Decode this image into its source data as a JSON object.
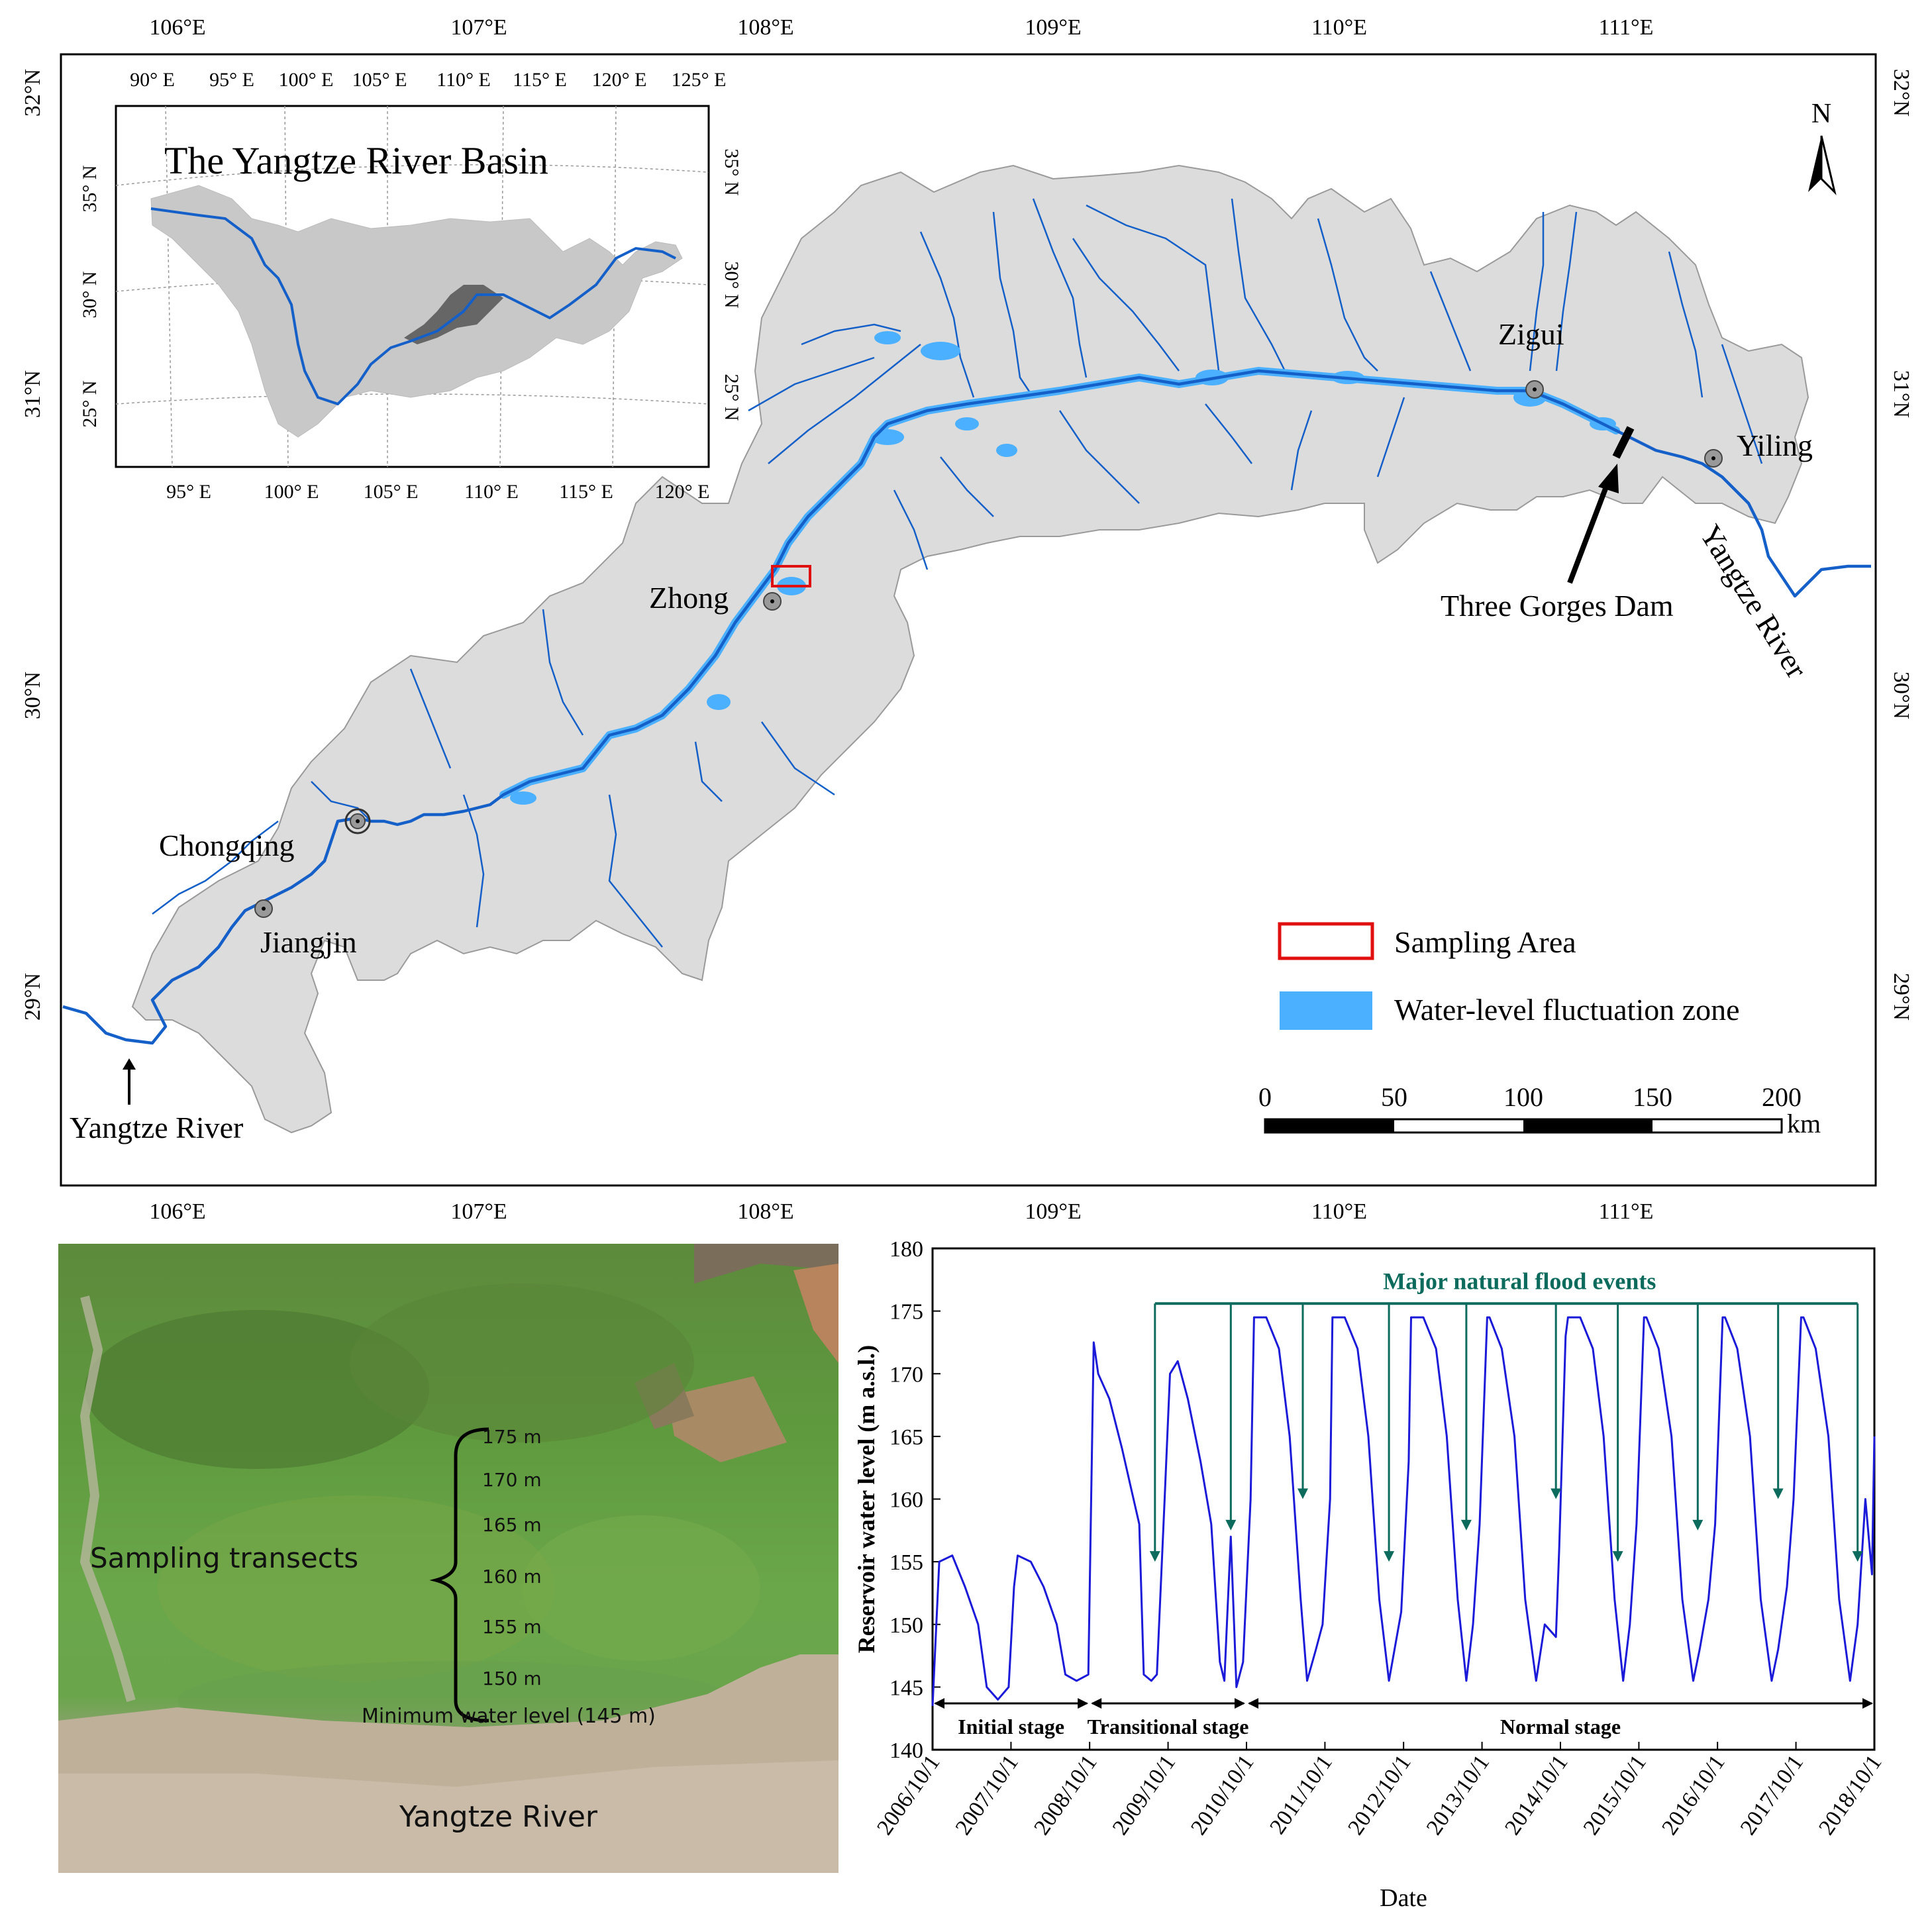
{
  "map": {
    "lon_labels": [
      "106°E",
      "107°E",
      "108°E",
      "109°E",
      "110°E",
      "111°E"
    ],
    "lat_labels": [
      "32°N",
      "31°N",
      "30°N",
      "29°N"
    ],
    "north_label": "N",
    "places": [
      {
        "name": "Zigui"
      },
      {
        "name": "Yiling"
      },
      {
        "name": "Zhong"
      },
      {
        "name": "Chongqing"
      },
      {
        "name": "Jiangjin"
      }
    ],
    "three_gorges_label": "Three Gorges Dam",
    "river_label_right": "Yangtze River",
    "river_label_left": "Yangtze River",
    "legend": {
      "sampling": "Sampling Area",
      "wlfz": "Water-level fluctuation zone"
    },
    "scalebar": {
      "ticks": [
        "0",
        "50",
        "100",
        "150",
        "200"
      ],
      "unit": "km"
    },
    "colors": {
      "basin": "#dcdcdc",
      "river": "#1460c8",
      "wlfz": "#4ab0ff",
      "sampling": "#e01010"
    }
  },
  "inset": {
    "title": "The Yangtze River Basin",
    "lon_labels": [
      "90° E",
      "95° E",
      "100° E",
      "105° E",
      "110° E",
      "115° E",
      "120° E",
      "125° E"
    ],
    "bottom_lon_labels": [
      "95° E",
      "100° E",
      "105° E",
      "110° E",
      "115° E",
      "120° E"
    ],
    "lat_labels": [
      "35° N",
      "30° N",
      "25° N"
    ]
  },
  "photo": {
    "transects_label": "Sampling transects",
    "elevations": [
      "175 m",
      "170 m",
      "165 m",
      "160 m",
      "155 m",
      "150 m"
    ],
    "min_level": "Minimum water level (145 m)",
    "river": "Yangtze River"
  },
  "chart_data": {
    "type": "line",
    "title": "",
    "xlabel": "Date",
    "ylabel": "Reservoir water level (m a.s.l.)",
    "ylim": [
      140,
      180
    ],
    "yticks": [
      140,
      145,
      150,
      155,
      160,
      165,
      170,
      175,
      180
    ],
    "xticks": [
      "2006/10/1",
      "2007/10/1",
      "2008/10/1",
      "2009/10/1",
      "2010/10/1",
      "2011/10/1",
      "2012/10/1",
      "2013/10/1",
      "2014/10/1",
      "2015/10/1",
      "2016/10/1",
      "2017/10/1",
      "2018/10/1"
    ],
    "series": [
      {
        "color": "#1a1ad8",
        "x": [
          "2006/10/1",
          "2006/11/1",
          "2007/1/1",
          "2007/3/1",
          "2007/5/1",
          "2007/6/10",
          "2007/8/1",
          "2007/9/20",
          "2007/10/15",
          "2007/11/1",
          "2008/1/1",
          "2008/3/1",
          "2008/5/1",
          "2008/6/10",
          "2008/8/1",
          "2008/9/25",
          "2008/10/20",
          "2008/11/10",
          "2009/1/1",
          "2009/3/1",
          "2009/4/10",
          "2009/5/20",
          "2009/6/10",
          "2009/7/15",
          "2009/8/10",
          "2009/9/15",
          "2009/10/10",
          "2009/11/15",
          "2010/1/1",
          "2010/3/1",
          "2010/4/20",
          "2010/5/30",
          "2010/6/20",
          "2010/7/20",
          "2010/8/15",
          "2010/9/15",
          "2010/10/20",
          "2010/11/5",
          "2011/1/1",
          "2011/3/1",
          "2011/4/20",
          "2011/6/10",
          "2011/7/10",
          "2011/8/20",
          "2011/9/20",
          "2011/10/25",
          "2011/11/5",
          "2012/1/1",
          "2012/3/1",
          "2012/4/20",
          "2012/6/10",
          "2012/7/25",
          "2012/8/20",
          "2012/9/20",
          "2012/10/25",
          "2012/11/5",
          "2013/1/1",
          "2013/3/1",
          "2013/4/20",
          "2013/6/10",
          "2013/7/20",
          "2013/8/20",
          "2013/9/20",
          "2013/10/25",
          "2013/11/5",
          "2014/1/1",
          "2014/3/1",
          "2014/4/20",
          "2014/6/10",
          "2014/7/20",
          "2014/9/10",
          "2014/9/25",
          "2014/10/25",
          "2014/11/5",
          "2015/1/1",
          "2015/3/1",
          "2015/4/20",
          "2015/6/10",
          "2015/7/20",
          "2015/8/20",
          "2015/9/20",
          "2015/10/25",
          "2015/11/5",
          "2016/1/1",
          "2016/3/1",
          "2016/4/20",
          "2016/6/10",
          "2016/7/10",
          "2016/8/20",
          "2016/9/20",
          "2016/10/25",
          "2016/11/5",
          "2017/1/1",
          "2017/3/1",
          "2017/4/20",
          "2017/6/10",
          "2017/7/10",
          "2017/8/20",
          "2017/9/20",
          "2017/10/25",
          "2017/11/5",
          "2018/1/1",
          "2018/3/1",
          "2018/4/20",
          "2018/6/10",
          "2018/7/15",
          "2018/8/20",
          "2018/9/20",
          "2018/10/1"
        ],
        "values": [
          143.5,
          155,
          155.5,
          153,
          150,
          145,
          144,
          145,
          153,
          155.5,
          155,
          153,
          150,
          146,
          145.5,
          146,
          172.5,
          170,
          168,
          164,
          161,
          158,
          146,
          145.5,
          146,
          160,
          170,
          171,
          168,
          163,
          158,
          147,
          145.5,
          157,
          145,
          147,
          160,
          174.5,
          174.5,
          172,
          165,
          152,
          145.5,
          148,
          150,
          160,
          174.5,
          174.5,
          172,
          165,
          152,
          145.5,
          148,
          151,
          163,
          174.5,
          174.5,
          172,
          165,
          152,
          145.5,
          150,
          158,
          174.5,
          174.5,
          172,
          165,
          152,
          145.5,
          150,
          149,
          156,
          173,
          174.5,
          174.5,
          172,
          165,
          152,
          145.5,
          150,
          158,
          174.5,
          174.5,
          172,
          165,
          152,
          145.5,
          148,
          152,
          158,
          174.5,
          174.5,
          172,
          165,
          152,
          145.5,
          148,
          153,
          160,
          174.5,
          174.5,
          172,
          165,
          152,
          145.5,
          150,
          160,
          154,
          165
        ]
      }
    ],
    "annotations": {
      "flood_label": "Major natural flood events",
      "stages": [
        "Initial stage",
        "Transitional stage",
        "Normal stage"
      ],
      "flood_dates": [
        "2009/8/1",
        "2010/7/20",
        "2011/6/20",
        "2012/7/25",
        "2013/7/20",
        "2014/9/10",
        "2015/6/25",
        "2016/7/1",
        "2017/7/10",
        "2018/7/15"
      ]
    }
  }
}
